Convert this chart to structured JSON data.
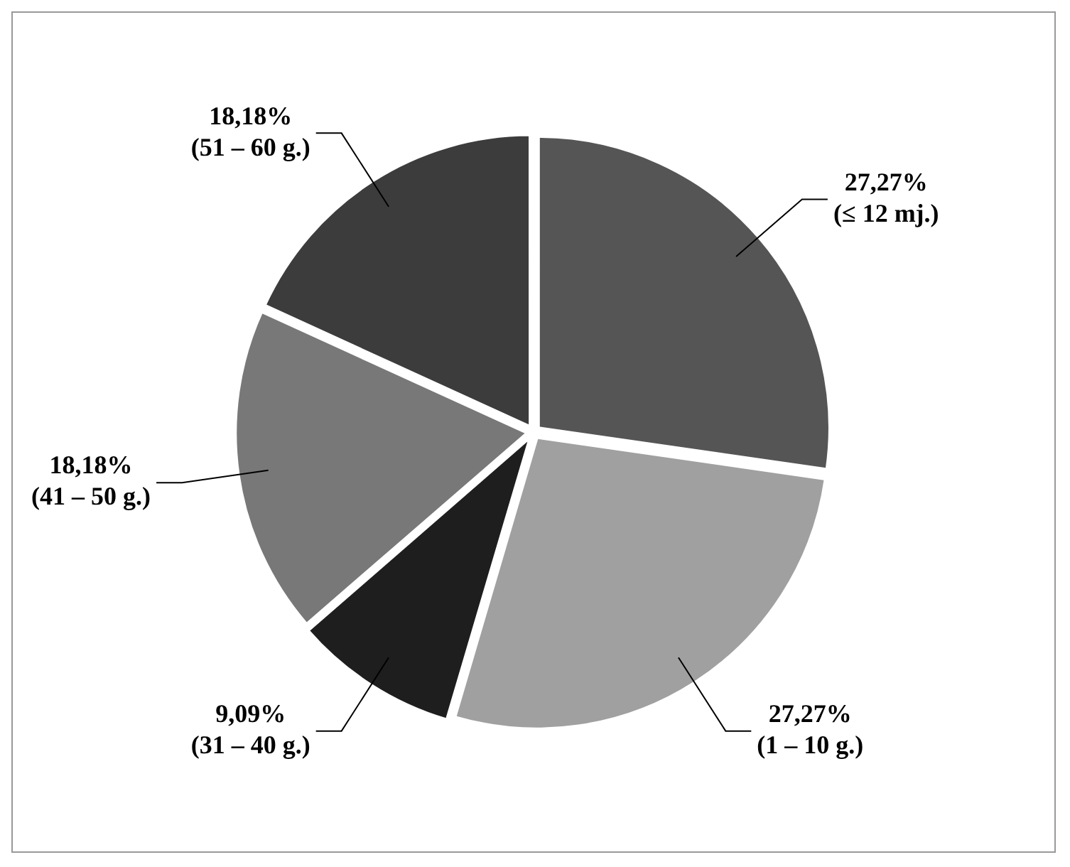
{
  "chart_data": {
    "type": "pie",
    "categories": [
      "(≤ 12 mj.)",
      "(1 – 10 g.)",
      "(31 – 40 g.)",
      "(41 – 50 g.)",
      "(51 – 60 g.)"
    ],
    "values": [
      27.27,
      27.27,
      9.09,
      18.18,
      18.18
    ],
    "value_labels": [
      "27,27%",
      "27,27%",
      "9,09%",
      "18,18%",
      "18,18%"
    ],
    "colors": [
      "#555555",
      "#a0a0a0",
      "#1e1e1e",
      "#787878",
      "#3c3c3c"
    ],
    "legend": false
  }
}
